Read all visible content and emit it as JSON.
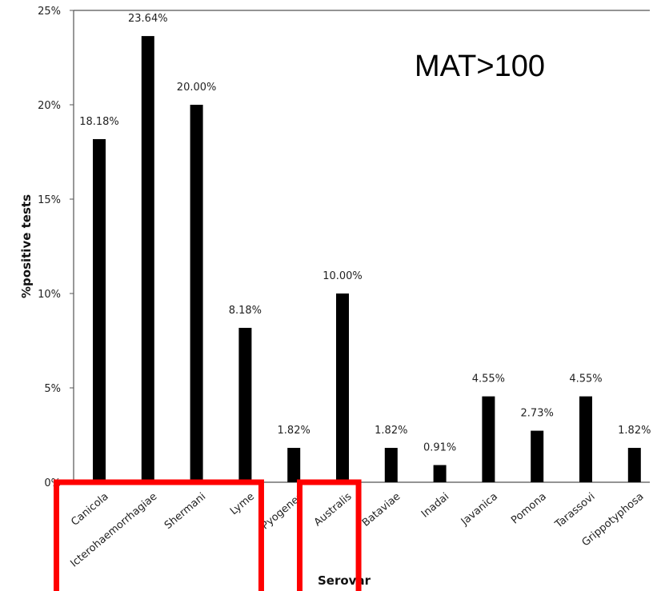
{
  "chart_data": {
    "type": "bar",
    "annotation": "MAT>100",
    "xlabel": "Serovar",
    "ylabel": "%positive tests",
    "ylim": [
      0,
      25
    ],
    "y_ticks": [
      "0%",
      "5%",
      "10%",
      "15%",
      "20%",
      "25%"
    ],
    "y_tick_values": [
      0,
      5,
      10,
      15,
      20,
      25
    ],
    "grid": false,
    "bar_color": "#000000",
    "highlight_color": "#ff0000",
    "categories": [
      "Canicola",
      "Icterohaemorrhagiae",
      "Shermani",
      "Lyme",
      "Pyogenes",
      "Australis",
      "Bataviae",
      "Inadai",
      "Javanica",
      "Pomona",
      "Tarassovi",
      "Grippotyphosa"
    ],
    "values": [
      18.18,
      23.64,
      20.0,
      8.18,
      1.82,
      10.0,
      1.82,
      0.91,
      4.55,
      2.73,
      4.55,
      1.82
    ],
    "data_labels": [
      "18.18%",
      "23.64%",
      "20.00%",
      "8.18%",
      "1.82%",
      "10.00%",
      "1.82%",
      "0.91%",
      "4.55%",
      "2.73%",
      "4.55%",
      "1.82%"
    ],
    "highlight_groups": [
      [
        "Canicola",
        "Icterohaemorrhagiae",
        "Shermani",
        "Lyme"
      ],
      [
        "Australis"
      ]
    ]
  }
}
